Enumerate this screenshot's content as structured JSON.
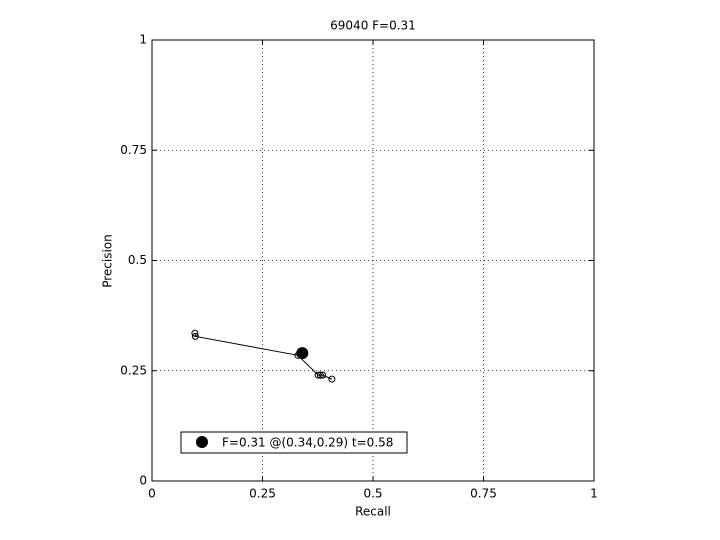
{
  "chart_data": {
    "type": "line",
    "title": "69040 F=0.31",
    "xlabel": "Recall",
    "ylabel": "Precision",
    "x": [
      0.097,
      0.098,
      0.33,
      0.376,
      0.381,
      0.386,
      0.407
    ],
    "y": [
      0.335,
      0.328,
      0.285,
      0.24,
      0.24,
      0.24,
      0.231
    ],
    "color": "#000000",
    "best": {
      "x": 0.34,
      "y": 0.29,
      "label": "F=0.31 @(0.34,0.29) t=0.58"
    },
    "xlim": [
      0,
      1
    ],
    "ylim": [
      0,
      1
    ],
    "xticks": [
      0,
      0.25,
      0.5,
      0.75,
      1
    ],
    "yticks": [
      0,
      0.25,
      0.5,
      0.75,
      1
    ],
    "grid": true
  }
}
